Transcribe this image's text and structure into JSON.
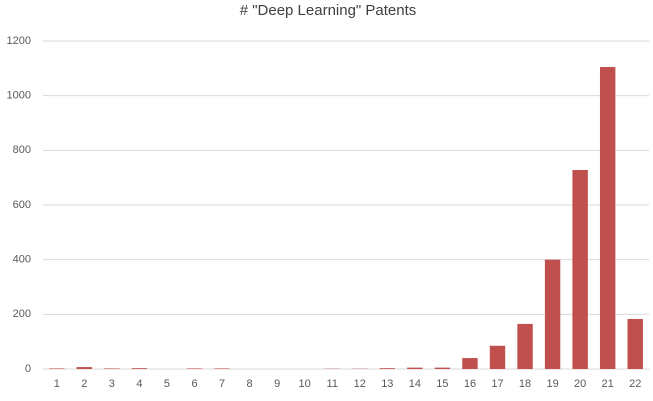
{
  "chart_data": {
    "type": "bar",
    "title": "# \"Deep Learning\" Patents",
    "categories": [
      "1",
      "2",
      "3",
      "4",
      "5",
      "6",
      "7",
      "8",
      "9",
      "10",
      "11",
      "12",
      "13",
      "14",
      "15",
      "16",
      "17",
      "18",
      "19",
      "20",
      "21",
      "22"
    ],
    "values": [
      2,
      7,
      2,
      3,
      0,
      2,
      2,
      0,
      0,
      0,
      1,
      1,
      3,
      5,
      5,
      40,
      85,
      165,
      400,
      728,
      1105,
      183
    ],
    "color": "#c0504d",
    "ylim": [
      0,
      1200
    ],
    "yticks": [
      0,
      200,
      400,
      600,
      800,
      1000,
      1200
    ],
    "grid": true
  }
}
